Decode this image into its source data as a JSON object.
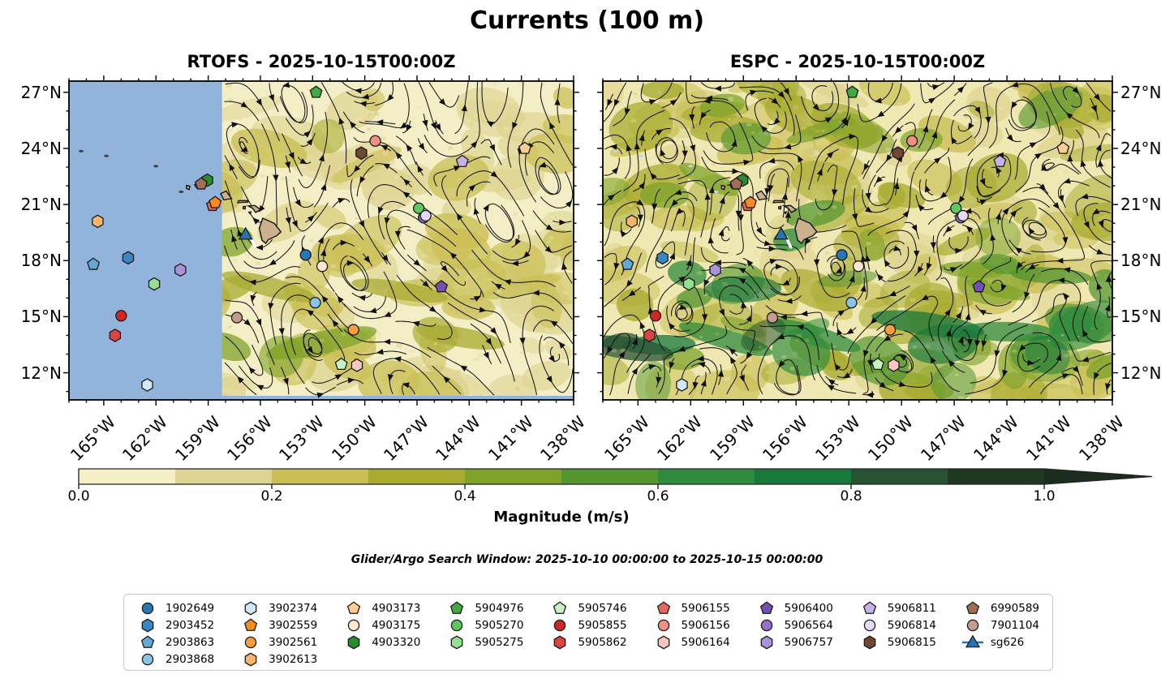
{
  "title": "Currents (100 m)",
  "subtitle": "Glider/Argo Search Window: 2025-10-10 00:00:00 to 2025-10-15 00:00:00",
  "chart_data": {
    "type": "scatter",
    "subtype": "geographic streamline/magnitude map, 2 panels, shared colorbar",
    "panels": [
      {
        "name": "RTOFS",
        "title": "RTOFS - 2025-10-15T00:00Z",
        "no_data_region": {
          "west_lon": -167.0,
          "east_lon": -158.2
        }
      },
      {
        "name": "ESPC",
        "title": "ESPC - 2025-10-15T00:00Z"
      }
    ],
    "extent": {
      "lon_min": -167.0,
      "lon_max": -138.0,
      "lat_min": 10.55,
      "lat_max": 27.6
    },
    "lon_ticks": [
      {
        "label": "165°W",
        "value": -165
      },
      {
        "label": "162°W",
        "value": -162
      },
      {
        "label": "159°W",
        "value": -159
      },
      {
        "label": "156°W",
        "value": -156
      },
      {
        "label": "153°W",
        "value": -153
      },
      {
        "label": "150°W",
        "value": -150
      },
      {
        "label": "147°W",
        "value": -147
      },
      {
        "label": "144°W",
        "value": -144
      },
      {
        "label": "141°W",
        "value": -141
      },
      {
        "label": "138°W",
        "value": -138
      }
    ],
    "lat_ticks": [
      {
        "label": "27°N",
        "value": 27
      },
      {
        "label": "24°N",
        "value": 24
      },
      {
        "label": "21°N",
        "value": 21
      },
      {
        "label": "18°N",
        "value": 18
      },
      {
        "label": "15°N",
        "value": 15
      },
      {
        "label": "12°N",
        "value": 12
      }
    ],
    "colorbar": {
      "label": "Magnitude (m/s)",
      "ticks": [
        "0.0",
        "0.2",
        "0.4",
        "0.6",
        "0.8",
        "1.0"
      ],
      "tick_values": [
        0.0,
        0.2,
        0.4,
        0.6,
        0.8,
        1.0
      ],
      "segment_colors": [
        "#f5efc6",
        "#ded491",
        "#cabf55",
        "#a9ab31",
        "#7fa32a",
        "#539630",
        "#2f8c3e",
        "#19783c",
        "#265231",
        "#203722"
      ],
      "extend_color": "#1b2e1d",
      "extend": "max"
    },
    "floats": [
      {
        "id": "1902649",
        "shape": "circle",
        "color": "#2678b4",
        "lon": -153.4,
        "lat": 18.3
      },
      {
        "id": "2903452",
        "shape": "hexagon",
        "color": "#3a87c2",
        "lon": -163.6,
        "lat": 18.15
      },
      {
        "id": "2903863",
        "shape": "pentagon",
        "color": "#64a9d4",
        "lon": -165.6,
        "lat": 17.8
      },
      {
        "id": "2903868",
        "shape": "circle",
        "color": "#8cc4e4",
        "lon": -152.85,
        "lat": 15.75
      },
      {
        "id": "3902374",
        "shape": "hexagon",
        "color": "#d2e7f4",
        "lon": -162.5,
        "lat": 11.35
      },
      {
        "id": "5906155",
        "shape": "pentagon",
        "color": "#e3675c",
        "lon": -158.75,
        "lat": 20.95
      },
      {
        "id": "3902559",
        "shape": "pentagon",
        "color": "#f68b1f",
        "lon": -158.6,
        "lat": 21.1
      },
      {
        "id": "3902561",
        "shape": "circle",
        "color": "#f99d3f",
        "lon": -150.65,
        "lat": 14.3
      },
      {
        "id": "3902613",
        "shape": "hexagon",
        "color": "#fbb469",
        "lon": -165.35,
        "lat": 20.1
      },
      {
        "id": "4903173",
        "shape": "pentagon",
        "color": "#fccd92",
        "lon": -140.8,
        "lat": 24.0
      },
      {
        "id": "4903175",
        "shape": "circle",
        "color": "#fce8cc",
        "lon": -152.45,
        "lat": 17.7
      },
      {
        "id": "4903320",
        "shape": "hexagon",
        "color": "#2c8b31",
        "lon": -159.05,
        "lat": 22.3
      },
      {
        "id": "5904976",
        "shape": "pentagon",
        "color": "#43aa43",
        "lon": -152.8,
        "lat": 27.0
      },
      {
        "id": "5905270",
        "shape": "circle",
        "color": "#5ec75e",
        "lon": -146.9,
        "lat": 20.8
      },
      {
        "id": "5905275",
        "shape": "hexagon",
        "color": "#95e095",
        "lon": -162.1,
        "lat": 16.75
      },
      {
        "id": "5905746",
        "shape": "pentagon",
        "color": "#c6f2c4",
        "lon": -151.35,
        "lat": 12.45
      },
      {
        "id": "5905855",
        "shape": "circle",
        "color": "#cd2727",
        "lon": -164.0,
        "lat": 15.05
      },
      {
        "id": "5905862",
        "shape": "hexagon",
        "color": "#d94545",
        "lon": -164.35,
        "lat": 14.0
      },
      {
        "id": "5906156",
        "shape": "circle",
        "color": "#f09183",
        "lon": -149.4,
        "lat": 24.4
      },
      {
        "id": "5906164",
        "shape": "hexagon",
        "color": "#f9c6c0",
        "lon": -150.45,
        "lat": 12.4
      },
      {
        "id": "5906400",
        "shape": "pentagon",
        "color": "#7350af",
        "lon": -145.6,
        "lat": 16.6
      },
      {
        "id": "5906564",
        "shape": "circle",
        "color": "#9272cc",
        "lon": -146.62,
        "lat": 20.3
      },
      {
        "id": "5906757",
        "shape": "hexagon",
        "color": "#ab93da",
        "lon": -160.6,
        "lat": 17.5
      },
      {
        "id": "5906811",
        "shape": "pentagon",
        "color": "#c6b1e9",
        "lon": -144.4,
        "lat": 23.3
      },
      {
        "id": "5906814",
        "shape": "circle",
        "color": "#e6d9f7",
        "lon": -146.5,
        "lat": 20.4
      },
      {
        "id": "5906815",
        "shape": "hexagon",
        "color": "#6e4831",
        "lon": -150.2,
        "lat": 23.75
      },
      {
        "id": "6990589",
        "shape": "pentagon",
        "color": "#a26e54",
        "lon": -159.4,
        "lat": 22.1
      },
      {
        "id": "7901104",
        "shape": "circle",
        "color": "#c69c8e",
        "lon": -157.35,
        "lat": 14.95
      },
      {
        "id": "sg626",
        "shape": "triangle",
        "color": "#2375b6",
        "lon": -156.85,
        "lat": 19.35
      }
    ],
    "legend_columns": [
      [
        "1902649",
        "2903452",
        "2903863",
        "2903868"
      ],
      [
        "3902374",
        "3902559",
        "3902561",
        "3902613"
      ],
      [
        "4903173",
        "4903175",
        "4903320"
      ],
      [
        "5904976",
        "5905270",
        "5905275"
      ],
      [
        "5905746",
        "5905855",
        "5905862"
      ],
      [
        "5906155",
        "5906156",
        "5906164"
      ],
      [
        "5906400",
        "5906564",
        "5906757"
      ],
      [
        "5906811",
        "5906814",
        "5906815"
      ],
      [
        "6990589",
        "7901104",
        "sg626"
      ]
    ]
  },
  "style": {
    "no_data_color": "#91b3dc",
    "land_color": "#cbb18e",
    "rtofs_background": "#f3eec6",
    "espc_background": "#efe8b2",
    "streamline_color": "#161616"
  }
}
